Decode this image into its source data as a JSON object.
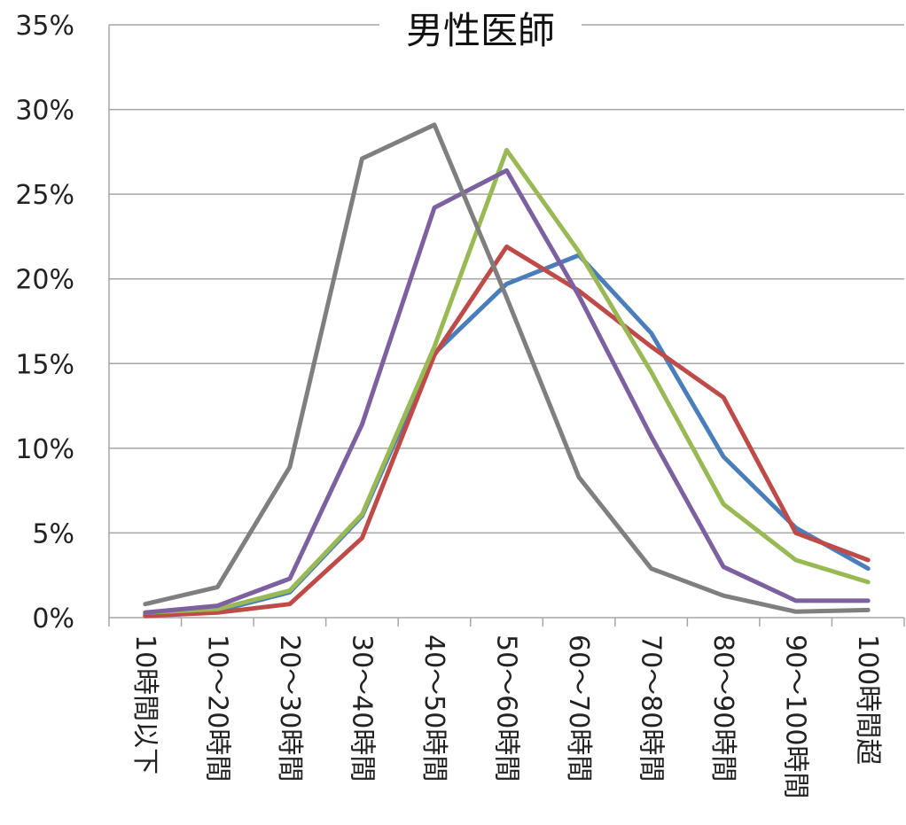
{
  "chart_data": {
    "type": "line",
    "title": "男性医師",
    "categories": [
      "10時間以下",
      "10～20時間",
      "20～30時間",
      "30～40時間",
      "40～50時間",
      "50～60時間",
      "60～70時間",
      "70～80時間",
      "80～90時間",
      "90～100時間",
      "100時間超"
    ],
    "y_ticks": [
      "0%",
      "5%",
      "10%",
      "15%",
      "20%",
      "25%",
      "30%",
      "35%"
    ],
    "ylim": [
      0,
      35
    ],
    "grid": true,
    "legend": "none",
    "series": [
      {
        "color": "#4a7ebb",
        "values": [
          0.2,
          0.4,
          1.5,
          6.0,
          15.6,
          19.7,
          21.4,
          16.8,
          9.5,
          5.3,
          2.9
        ]
      },
      {
        "color": "#be4b48",
        "values": [
          0.1,
          0.3,
          0.8,
          4.7,
          15.5,
          21.9,
          19.3,
          16.0,
          13.0,
          5.0,
          3.4
        ]
      },
      {
        "color": "#98b954",
        "values": [
          0.3,
          0.5,
          1.6,
          6.1,
          16.0,
          27.6,
          21.6,
          14.5,
          6.7,
          3.4,
          2.1
        ]
      },
      {
        "color": "#7d60a0",
        "values": [
          0.3,
          0.7,
          2.3,
          11.4,
          24.2,
          26.4,
          19.0,
          10.7,
          3.0,
          1.0,
          1.0
        ]
      },
      {
        "color": "#7f7f7f",
        "values": [
          0.8,
          1.8,
          8.9,
          27.1,
          29.1,
          18.9,
          8.3,
          2.9,
          1.3,
          0.35,
          0.45
        ]
      }
    ]
  }
}
